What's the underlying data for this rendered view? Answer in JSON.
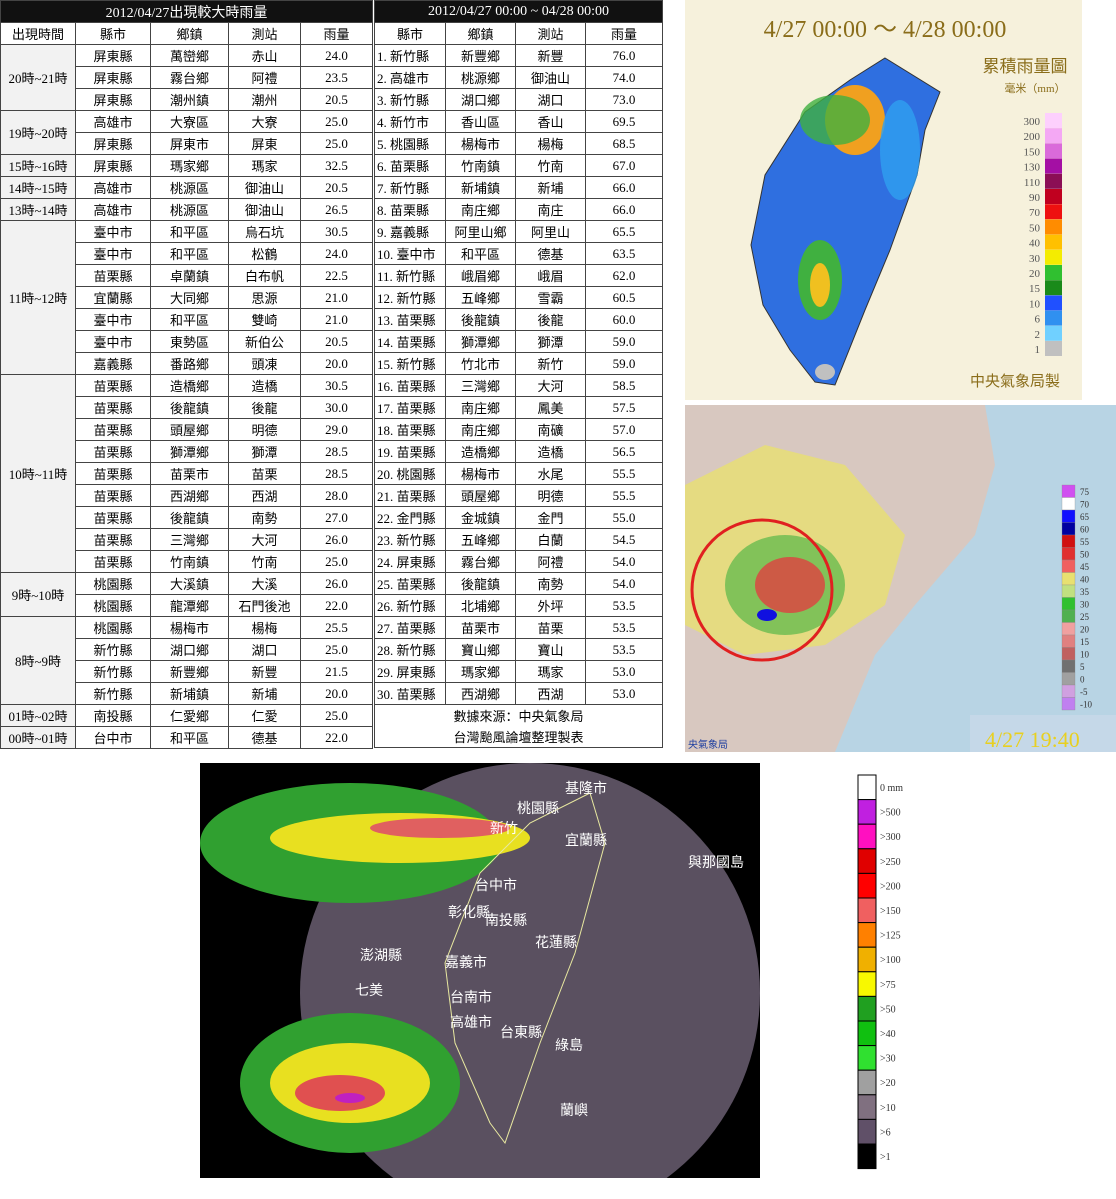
{
  "left_table": {
    "title": "2012/04/27出現較大時雨量",
    "header": [
      "出現時間",
      "縣市",
      "鄉鎮",
      "測站",
      "雨量"
    ],
    "groups": [
      {
        "time": "20時~21時",
        "rows": [
          [
            "屏東縣",
            "萬巒鄉",
            "赤山",
            "24.0"
          ],
          [
            "屏東縣",
            "霧台鄉",
            "阿禮",
            "23.5"
          ],
          [
            "屏東縣",
            "潮州鎮",
            "潮州",
            "20.5"
          ]
        ]
      },
      {
        "time": "19時~20時",
        "rows": [
          [
            "高雄市",
            "大寮區",
            "大寮",
            "25.0"
          ],
          [
            "屏東縣",
            "屏東市",
            "屏東",
            "25.0"
          ]
        ]
      },
      {
        "time": "15時~16時",
        "rows": [
          [
            "屏東縣",
            "瑪家鄉",
            "瑪家",
            "32.5"
          ]
        ]
      },
      {
        "time": "14時~15時",
        "rows": [
          [
            "高雄市",
            "桃源區",
            "御油山",
            "20.5"
          ]
        ]
      },
      {
        "time": "13時~14時",
        "rows": [
          [
            "高雄市",
            "桃源區",
            "御油山",
            "26.5"
          ]
        ]
      },
      {
        "time": "11時~12時",
        "rows": [
          [
            "臺中市",
            "和平區",
            "烏石坑",
            "30.5"
          ],
          [
            "臺中市",
            "和平區",
            "松鶴",
            "24.0"
          ],
          [
            "苗栗縣",
            "卓蘭鎮",
            "白布帆",
            "22.5"
          ],
          [
            "宜蘭縣",
            "大同鄉",
            "思源",
            "21.0"
          ],
          [
            "臺中市",
            "和平區",
            "雙崎",
            "21.0"
          ],
          [
            "臺中市",
            "東勢區",
            "新伯公",
            "20.5"
          ],
          [
            "嘉義縣",
            "番路鄉",
            "頭凍",
            "20.0"
          ]
        ]
      },
      {
        "time": "10時~11時",
        "rows": [
          [
            "苗栗縣",
            "造橋鄉",
            "造橋",
            "30.5"
          ],
          [
            "苗栗縣",
            "後龍鎮",
            "後龍",
            "30.0"
          ],
          [
            "苗栗縣",
            "頭屋鄉",
            "明德",
            "29.0"
          ],
          [
            "苗栗縣",
            "獅潭鄉",
            "獅潭",
            "28.5"
          ],
          [
            "苗栗縣",
            "苗栗市",
            "苗栗",
            "28.5"
          ],
          [
            "苗栗縣",
            "西湖鄉",
            "西湖",
            "28.0"
          ],
          [
            "苗栗縣",
            "後龍鎮",
            "南勢",
            "27.0"
          ],
          [
            "苗栗縣",
            "三灣鄉",
            "大河",
            "26.0"
          ],
          [
            "苗栗縣",
            "竹南鎮",
            "竹南",
            "25.0"
          ]
        ]
      },
      {
        "time": "9時~10時",
        "rows": [
          [
            "桃園縣",
            "大溪鎮",
            "大溪",
            "26.0"
          ],
          [
            "桃園縣",
            "龍潭鄉",
            "石門後池",
            "22.0"
          ]
        ]
      },
      {
        "time": "8時~9時",
        "rows": [
          [
            "桃園縣",
            "楊梅市",
            "楊梅",
            "25.5"
          ],
          [
            "新竹縣",
            "湖口鄉",
            "湖口",
            "25.0"
          ],
          [
            "新竹縣",
            "新豐鄉",
            "新豐",
            "21.5"
          ],
          [
            "新竹縣",
            "新埔鎮",
            "新埔",
            "20.0"
          ]
        ]
      },
      {
        "time": "01時~02時",
        "rows": [
          [
            "南投縣",
            "仁愛鄉",
            "仁愛",
            "25.0"
          ]
        ]
      },
      {
        "time": "00時~01時",
        "rows": [
          [
            "台中市",
            "和平區",
            "德基",
            "22.0"
          ]
        ]
      }
    ]
  },
  "right_table": {
    "title": "2012/04/27 00:00 ~ 04/28 00:00",
    "header": [
      "縣市",
      "鄉鎮",
      "測站",
      "雨量"
    ],
    "rows": [
      [
        "1. 新竹縣",
        "新豐鄉",
        "新豐",
        "76.0"
      ],
      [
        "2. 高雄市",
        "桃源鄉",
        "御油山",
        "74.0"
      ],
      [
        "3. 新竹縣",
        "湖口鄉",
        "湖口",
        "73.0"
      ],
      [
        "4. 新竹市",
        "香山區",
        "香山",
        "69.5"
      ],
      [
        "5. 桃園縣",
        "楊梅市",
        "楊梅",
        "68.5"
      ],
      [
        "6. 苗栗縣",
        "竹南鎮",
        "竹南",
        "67.0"
      ],
      [
        "7. 新竹縣",
        "新埔鎮",
        "新埔",
        "66.0"
      ],
      [
        "8. 苗栗縣",
        "南庄鄉",
        "南庄",
        "66.0"
      ],
      [
        "9. 嘉義縣",
        "阿里山鄉",
        "阿里山",
        "65.5"
      ],
      [
        "10. 臺中市",
        "和平區",
        "德基",
        "63.5"
      ],
      [
        "11. 新竹縣",
        "峨眉鄉",
        "峨眉",
        "62.0"
      ],
      [
        "12. 新竹縣",
        "五峰鄉",
        "雪霸",
        "60.5"
      ],
      [
        "13. 苗栗縣",
        "後龍鎮",
        "後龍",
        "60.0"
      ],
      [
        "14. 苗栗縣",
        "獅潭鄉",
        "獅潭",
        "59.0"
      ],
      [
        "15. 新竹縣",
        "竹北市",
        "新竹",
        "59.0"
      ],
      [
        "16. 苗栗縣",
        "三灣鄉",
        "大河",
        "58.5"
      ],
      [
        "17. 苗栗縣",
        "南庄鄉",
        "鳳美",
        "57.5"
      ],
      [
        "18. 苗栗縣",
        "南庄鄉",
        "南礦",
        "57.0"
      ],
      [
        "19. 苗栗縣",
        "造橋鄉",
        "造橋",
        "56.5"
      ],
      [
        "20. 桃園縣",
        "楊梅市",
        "水尾",
        "55.5"
      ],
      [
        "21. 苗栗縣",
        "頭屋鄉",
        "明德",
        "55.5"
      ],
      [
        "22. 金門縣",
        "金城鎮",
        "金門",
        "55.0"
      ],
      [
        "23. 新竹縣",
        "五峰鄉",
        "白蘭",
        "54.5"
      ],
      [
        "24. 屏東縣",
        "霧台鄉",
        "阿禮",
        "54.0"
      ],
      [
        "25. 苗栗縣",
        "後龍鎮",
        "南勢",
        "54.0"
      ],
      [
        "26. 新竹縣",
        "北埔鄉",
        "外坪",
        "53.5"
      ],
      [
        "27. 苗栗縣",
        "苗栗市",
        "苗栗",
        "53.5"
      ],
      [
        "28. 新竹縣",
        "寶山鄉",
        "寶山",
        "53.5"
      ],
      [
        "29. 屏東縣",
        "瑪家鄉",
        "瑪家",
        "53.0"
      ],
      [
        "30. 苗栗縣",
        "西湖鄉",
        "西湖",
        "53.0"
      ]
    ],
    "footer": [
      "數據來源：中央氣象局",
      "台灣颱風論壇整理製表"
    ]
  },
  "rain_map": {
    "title": "4/27 00:00 ～ 4/28 00:00",
    "legend_title": "累積雨量圖",
    "unit": "毫米（mm）",
    "levels": [
      "300",
      "200",
      "150",
      "130",
      "110",
      "90",
      "70",
      "50",
      "40",
      "30",
      "20",
      "15",
      "10",
      "6",
      "2",
      "1"
    ],
    "credit": "中央氣象局製"
  },
  "radar_small": {
    "levels": [
      "75",
      "70",
      "65",
      "60",
      "55",
      "50",
      "45",
      "40",
      "35",
      "30",
      "25",
      "20",
      "15",
      "10",
      "5",
      "0",
      "-5",
      "-10"
    ],
    "time": "4/27 19:40",
    "credit": "央氣象局"
  },
  "radar_large": {
    "levels": [
      "0 mm",
      ">500",
      ">300",
      ">250",
      ">200",
      ">150",
      ">125",
      ">100",
      ">75",
      ">50",
      ">40",
      ">30",
      ">20",
      ">10",
      ">6",
      ">1"
    ],
    "places": [
      "基隆市",
      "桃園縣",
      "新竹",
      "宜蘭縣",
      "台中市",
      "彰化縣",
      "南投縣",
      "花蓮縣",
      "與那國島",
      "澎湖縣",
      "嘉義市",
      "七美",
      "台南市",
      "高雄市",
      "台東縣",
      "綠島",
      "蘭嶼"
    ]
  }
}
